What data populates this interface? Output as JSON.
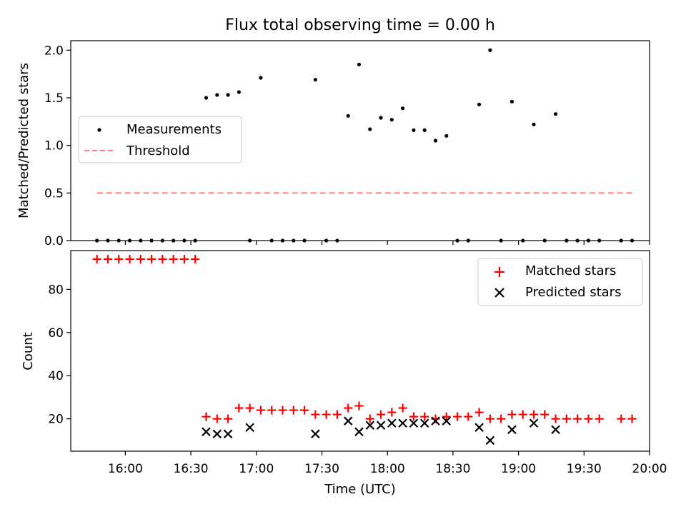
{
  "chart_data": {
    "type": "scatter",
    "title": "Flux total observing time = 0.00 h",
    "xlabel": "Time (UTC)",
    "x_tick_labels": [
      "16:00",
      "16:30",
      "17:00",
      "17:30",
      "18:00",
      "18:30",
      "19:00",
      "19:30",
      "20:00"
    ],
    "x_tick_minutes": [
      960,
      990,
      1020,
      1050,
      1080,
      1110,
      1140,
      1170,
      1200
    ],
    "xlim_minutes": [
      935,
      1200
    ],
    "x_unit": "minutes since 00:00 UTC",
    "panels": [
      {
        "id": "ratio",
        "ylabel": "Matched/Predicted stars",
        "ylim": [
          0,
          2.1
        ],
        "y_ticks": [
          0.0,
          0.5,
          1.0,
          1.5,
          2.0
        ],
        "y_tick_labels": [
          "0.0",
          "0.5",
          "1.0",
          "1.5",
          "2.0"
        ],
        "legend_position": "center-left",
        "series": [
          {
            "name": "Measurements",
            "marker": "dot",
            "color": "#000000",
            "x": [
              947,
              952,
              957,
              962,
              967,
              972,
              977,
              982,
              987,
              992,
              997,
              1002,
              1007,
              1012,
              1017,
              1022,
              1027,
              1032,
              1037,
              1042,
              1047,
              1052,
              1057,
              1062,
              1067,
              1072,
              1077,
              1082,
              1087,
              1092,
              1097,
              1102,
              1107,
              1112,
              1117,
              1122,
              1127,
              1132,
              1137,
              1142,
              1147,
              1152,
              1157,
              1162,
              1167,
              1172,
              1177,
              1187,
              1192
            ],
            "y": [
              0,
              0,
              0,
              0,
              0,
              0,
              0,
              0,
              0,
              0,
              1.5,
              1.53,
              1.53,
              1.56,
              0,
              1.71,
              0,
              0,
              0,
              0,
              1.69,
              0,
              0,
              1.31,
              1.85,
              1.17,
              1.29,
              1.27,
              1.39,
              1.16,
              1.16,
              1.05,
              1.1,
              0,
              0,
              1.43,
              2.0,
              0,
              1.46,
              0,
              1.22,
              0,
              1.33,
              0,
              0,
              0,
              0,
              0,
              0
            ]
          },
          {
            "name": "Threshold",
            "marker": "dashed-line",
            "color": "#ff7f7f",
            "x": [
              947,
              1192
            ],
            "y": [
              0.5,
              0.5
            ]
          }
        ]
      },
      {
        "id": "count",
        "ylabel": "Count",
        "ylim": [
          5,
          98
        ],
        "y_ticks": [
          20,
          40,
          60,
          80
        ],
        "y_tick_labels": [
          "20",
          "40",
          "60",
          "80"
        ],
        "legend_position": "top-right",
        "series": [
          {
            "name": "Matched stars",
            "marker": "plus",
            "color": "#ff0000",
            "x": [
              947,
              952,
              957,
              962,
              967,
              972,
              977,
              982,
              987,
              992,
              997,
              1002,
              1007,
              1012,
              1017,
              1022,
              1027,
              1032,
              1037,
              1042,
              1047,
              1052,
              1057,
              1062,
              1067,
              1072,
              1077,
              1082,
              1087,
              1092,
              1097,
              1102,
              1107,
              1112,
              1117,
              1122,
              1127,
              1132,
              1137,
              1142,
              1147,
              1152,
              1157,
              1162,
              1167,
              1172,
              1177,
              1187,
              1192
            ],
            "y": [
              94,
              94,
              94,
              94,
              94,
              94,
              94,
              94,
              94,
              94,
              21,
              20,
              20,
              25,
              25,
              24,
              24,
              24,
              24,
              24,
              22,
              22,
              22,
              25,
              26,
              20,
              22,
              23,
              25,
              21,
              21,
              20,
              21,
              21,
              21,
              23,
              20,
              20,
              22,
              22,
              22,
              22,
              20,
              20,
              20,
              20,
              20,
              20,
              20
            ]
          },
          {
            "name": "Predicted stars",
            "marker": "x",
            "color": "#000000",
            "x": [
              997,
              1002,
              1007,
              1017,
              1047,
              1062,
              1067,
              1072,
              1077,
              1082,
              1087,
              1092,
              1097,
              1102,
              1107,
              1122,
              1127,
              1137,
              1147,
              1157
            ],
            "y": [
              14,
              13,
              13,
              16,
              13,
              19,
              14,
              17,
              17,
              18,
              18,
              18,
              18,
              19,
              19,
              16,
              10,
              15,
              18,
              15
            ]
          }
        ]
      }
    ]
  }
}
